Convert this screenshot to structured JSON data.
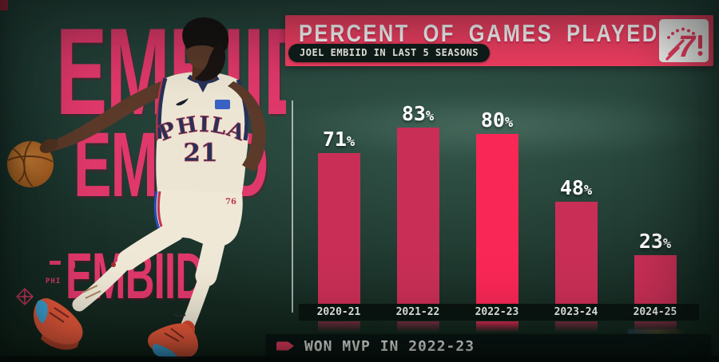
{
  "header": {
    "title": "PERCENT OF GAMES PLAYED",
    "subtitle": "JOEL EMBIID IN LAST 5 SEASONS"
  },
  "logo": {
    "name": "philadelphia-76ers-logo",
    "glyph": "7"
  },
  "watermark": {
    "rows": [
      "EMBIID",
      "EMBIID",
      "EMBIID"
    ],
    "side_label": "PHI"
  },
  "player": {
    "team_wordmark": "PHILA",
    "jersey_number": "21",
    "shorts_mark": "76"
  },
  "chart_data": {
    "type": "bar",
    "title": "PERCENT OF GAMES PLAYED",
    "subtitle": "JOEL EMBIID IN LAST 5 SEASONS",
    "categories": [
      "2020-21",
      "2021-22",
      "2022-23",
      "2023-24",
      "2024-25"
    ],
    "values": [
      71,
      83,
      80,
      48,
      23
    ],
    "value_labels": [
      "71%",
      "83%",
      "80%",
      "48%",
      "23%"
    ],
    "highlighted_category": "2022-23",
    "highlight_note": "WON MVP IN 2022-23",
    "ylim": [
      0,
      100
    ],
    "grid": false,
    "legend": "none",
    "bar_color": "#c92f56",
    "highlight_color": "#f92756"
  },
  "footer": {
    "note": "WON MVP IN 2022-23",
    "icon": "arrow-tag-icon"
  },
  "colors": {
    "banner_pink": "#f43f63",
    "bar": "#c92f56",
    "bar_highlight": "#f92756",
    "watermark": "#e0386a",
    "background_green": "#1d3830",
    "jersey_cream": "#ece5d3",
    "jersey_navy": "#273158"
  }
}
